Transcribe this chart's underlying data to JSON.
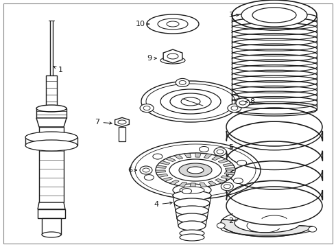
{
  "bg_color": "#ffffff",
  "line_color": "#1a1a1a",
  "fig_width": 4.9,
  "fig_height": 3.6,
  "dpi": 100,
  "border": true
}
